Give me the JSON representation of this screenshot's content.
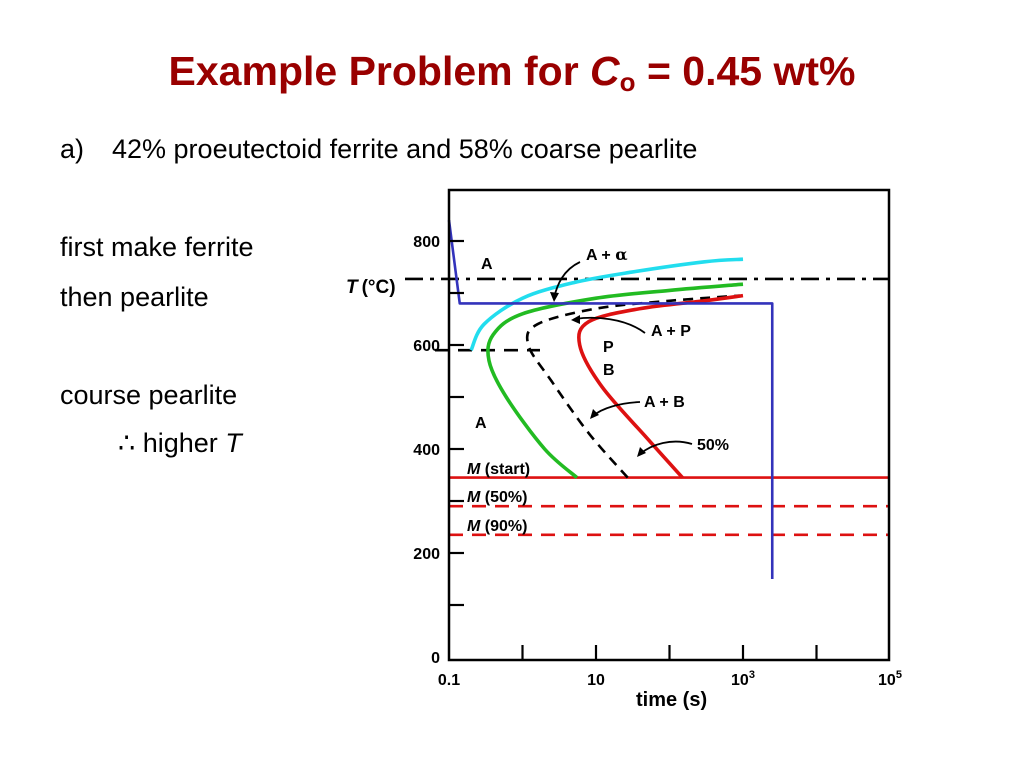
{
  "slide": {
    "title_prefix": "Example Problem for ",
    "title_var": "C",
    "title_sub": "o",
    "title_suffix": " = 0.45 wt%",
    "bullet_marker": "a)",
    "bullet_text": "42% proeutectoid ferrite and 58% coarse pearlite",
    "notes": {
      "line1": "first make ferrite",
      "line2": "then pearlite",
      "line3": "course pearlite",
      "line4_symbol": "∴",
      "line4_text": "higher",
      "line4_var": "T"
    }
  },
  "chart_data": {
    "type": "line",
    "x_scale": "log",
    "xlim": [
      0.1,
      100000
    ],
    "ylim": [
      0,
      900
    ],
    "ylabel_var": "T",
    "ylabel_unit": "(°C)",
    "xlabel": "time (s)",
    "x_ticks": [
      {
        "label": "0.1",
        "sup": ""
      },
      {
        "label": "10",
        "sup": ""
      },
      {
        "label": "10",
        "sup": "3"
      },
      {
        "label": "10",
        "sup": "5"
      }
    ],
    "y_ticks": [
      "0",
      "200",
      "400",
      "600",
      "800"
    ],
    "curves": {
      "ferrite_start": {
        "color": "#22ddee",
        "points": [
          [
            0.2,
            590
          ],
          [
            0.3,
            640
          ],
          [
            1,
            690
          ],
          [
            5,
            720
          ],
          [
            30,
            740
          ],
          [
            300,
            760
          ],
          [
            1000,
            765
          ]
        ]
      },
      "pearlite_start": {
        "color": "#22bb22",
        "points": [
          [
            5.5,
            345
          ],
          [
            2,
            400
          ],
          [
            0.6,
            500
          ],
          [
            0.35,
            570
          ],
          [
            0.4,
            620
          ],
          [
            1,
            660
          ],
          [
            10,
            690
          ],
          [
            100,
            705
          ],
          [
            1000,
            717
          ]
        ]
      },
      "fifty_percent": {
        "color": "#000000",
        "dashed": true,
        "points": [
          [
            27,
            345
          ],
          [
            8,
            430
          ],
          [
            2.5,
            530
          ],
          [
            1.2,
            600
          ],
          [
            1.6,
            640
          ],
          [
            10,
            670
          ],
          [
            100,
            685
          ],
          [
            900,
            695
          ]
        ]
      },
      "pearlite_finish": {
        "color": "#dd1111",
        "points": [
          [
            150,
            345
          ],
          [
            50,
            420
          ],
          [
            12,
            520
          ],
          [
            6,
            600
          ],
          [
            8,
            645
          ],
          [
            40,
            670
          ],
          [
            300,
            685
          ],
          [
            1000,
            695
          ]
        ]
      },
      "cooling_path": {
        "color": "#3333bb",
        "points": [
          [
            0.1,
            840
          ],
          [
            0.14,
            680
          ],
          [
            2500,
            680
          ],
          [
            2500,
            150
          ]
        ]
      }
    },
    "horizontal_lines": {
      "eutectoid": {
        "y": 727,
        "color": "#000000",
        "style": "dash-dot"
      },
      "reference_600": {
        "y": 590,
        "color": "#000000",
        "style": "dashed"
      },
      "m_start": {
        "y": 345,
        "color": "#dd1111",
        "style": "solid"
      },
      "m_50": {
        "y": 290,
        "color": "#dd1111",
        "style": "dashed"
      },
      "m_90": {
        "y": 235,
        "color": "#dd1111",
        "style": "dashed"
      }
    },
    "annotations": {
      "A_upper": "A",
      "A_alpha_prefix": "A + ",
      "A_alpha_symbol": "α",
      "A_P": "A + P",
      "P": "P",
      "B": "B",
      "A_B": "A + B",
      "A_lower": "A",
      "fifty": "50%",
      "m_start_var": "M",
      "m_start_text": " (start)",
      "m_50_var": "M",
      "m_50_text": " (50%)",
      "m_90_var": "M",
      "m_90_text": " (90%)"
    }
  }
}
